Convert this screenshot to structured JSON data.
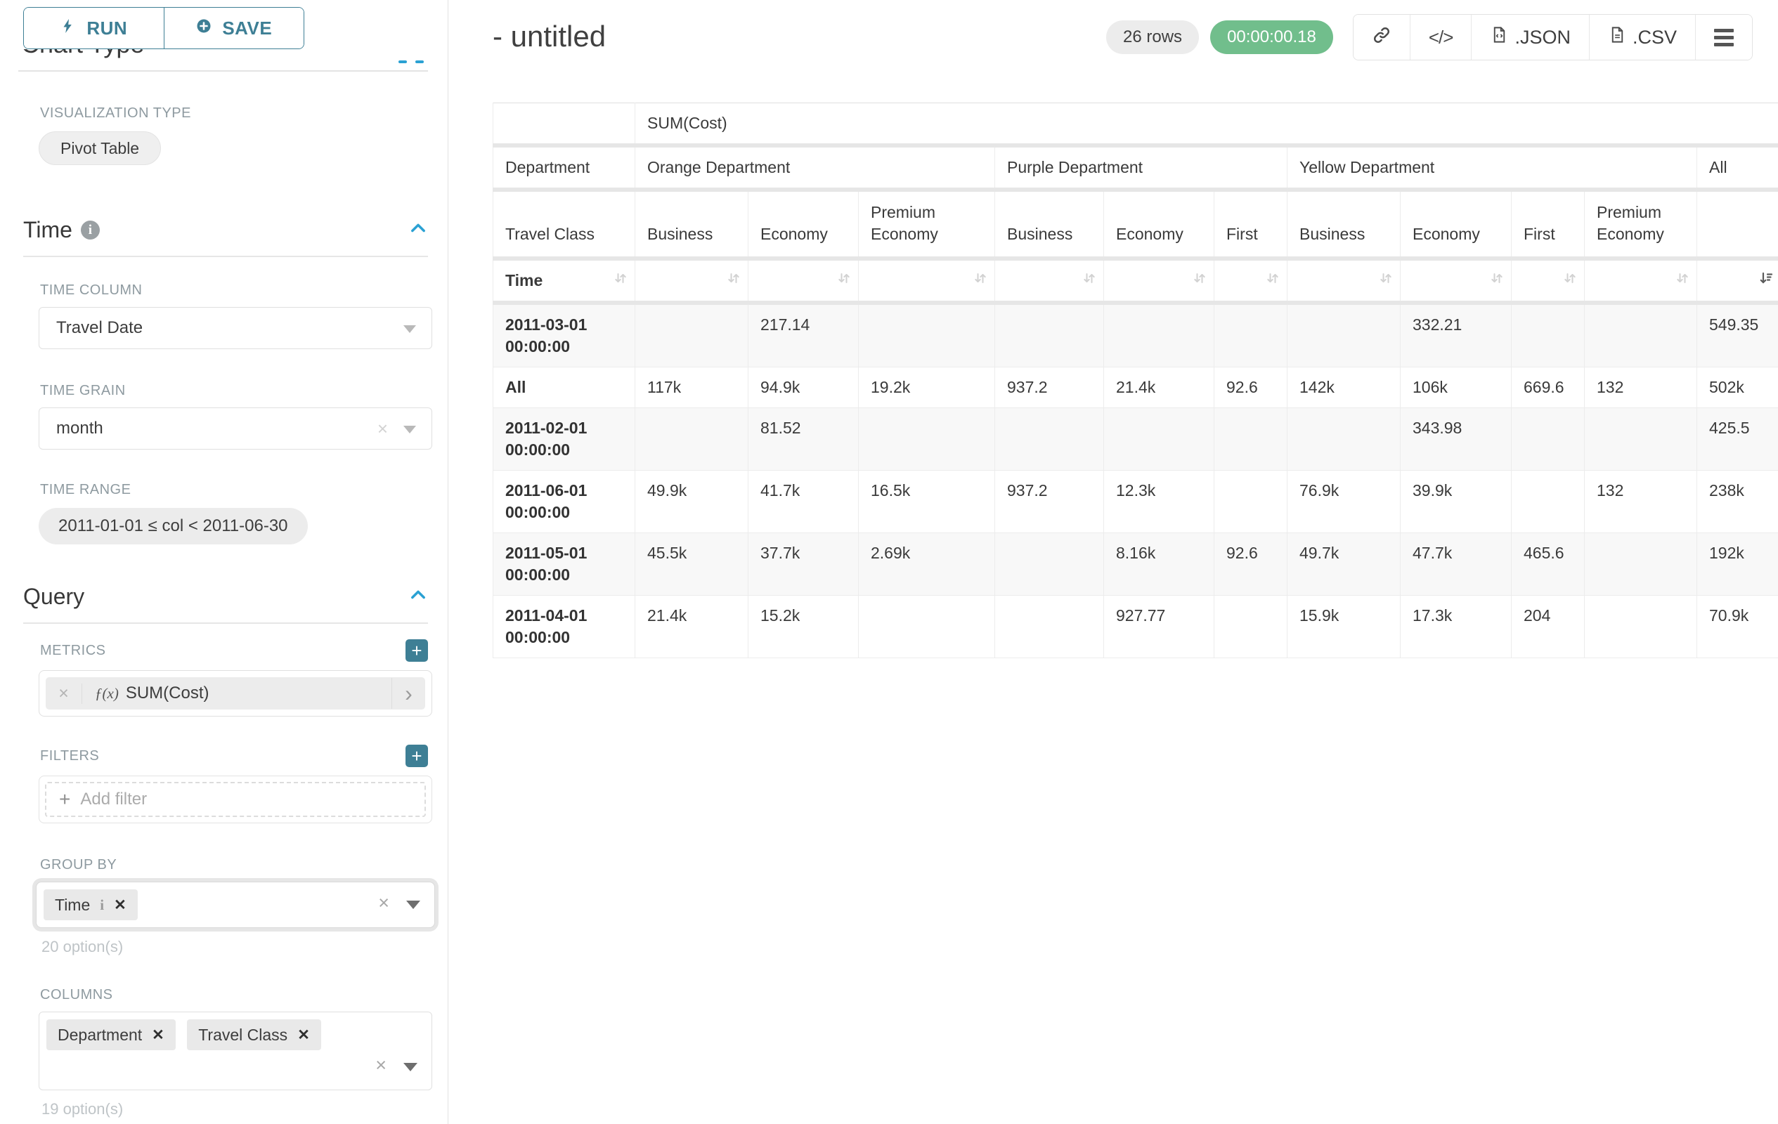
{
  "sidebar": {
    "run_label": "RUN",
    "save_label": "SAVE",
    "chart_type_heading": "Chart Type",
    "visualization_type_label": "VISUALIZATION TYPE",
    "visualization_type_value": "Pivot Table",
    "time": {
      "heading": "Time",
      "time_column_label": "TIME COLUMN",
      "time_column_value": "Travel Date",
      "time_grain_label": "TIME GRAIN",
      "time_grain_value": "month",
      "time_range_label": "TIME RANGE",
      "time_range_value": "2011-01-01 ≤ col < 2011-06-30"
    },
    "query": {
      "heading": "Query",
      "metrics_label": "METRICS",
      "metric_fx": "ƒ(x)",
      "metric_value": "SUM(Cost)",
      "filters_label": "FILTERS",
      "add_filter_label": "Add filter",
      "group_by_label": "GROUP BY",
      "group_by_tags": [
        "Time"
      ],
      "group_by_hint": "20 option(s)",
      "columns_label": "COLUMNS",
      "columns_tags": [
        "Department",
        "Travel Class"
      ],
      "columns_hint": "19 option(s)"
    }
  },
  "header": {
    "title": "- untitled",
    "rows_badge": "26 rows",
    "timer_badge": "00:00:00.18",
    "json_label": ".JSON",
    "csv_label": ".CSV"
  },
  "table": {
    "metric_header": "SUM(Cost)",
    "department_label": "Department",
    "travel_class_label": "Travel Class",
    "time_label": "Time",
    "groups": [
      {
        "name": "Orange Department",
        "classes": [
          "Business",
          "Economy",
          "Premium Economy"
        ]
      },
      {
        "name": "Purple Department",
        "classes": [
          "Business",
          "Economy",
          "First"
        ]
      },
      {
        "name": "Yellow Department",
        "classes": [
          "Business",
          "Economy",
          "First",
          "Premium Economy"
        ]
      },
      {
        "name": "All",
        "classes": [
          ""
        ]
      }
    ],
    "rows": [
      {
        "time": "2011-03-01 00:00:00",
        "values": [
          "",
          "217.14",
          "",
          "",
          "",
          "",
          "",
          "332.21",
          "",
          "",
          "549.35"
        ]
      },
      {
        "time": "All",
        "values": [
          "117k",
          "94.9k",
          "19.2k",
          "937.2",
          "21.4k",
          "92.6",
          "142k",
          "106k",
          "669.6",
          "132",
          "502k"
        ]
      },
      {
        "time": "2011-02-01 00:00:00",
        "values": [
          "",
          "81.52",
          "",
          "",
          "",
          "",
          "",
          "343.98",
          "",
          "",
          "425.5"
        ]
      },
      {
        "time": "2011-06-01 00:00:00",
        "values": [
          "49.9k",
          "41.7k",
          "16.5k",
          "937.2",
          "12.3k",
          "",
          "76.9k",
          "39.9k",
          "",
          "132",
          "238k"
        ]
      },
      {
        "time": "2011-05-01 00:00:00",
        "values": [
          "45.5k",
          "37.7k",
          "2.69k",
          "",
          "8.16k",
          "92.6",
          "49.7k",
          "47.7k",
          "465.6",
          "",
          "192k"
        ]
      },
      {
        "time": "2011-04-01 00:00:00",
        "values": [
          "21.4k",
          "15.2k",
          "",
          "",
          "927.77",
          "",
          "15.9k",
          "17.3k",
          "204",
          "",
          "70.9k"
        ]
      }
    ]
  }
}
